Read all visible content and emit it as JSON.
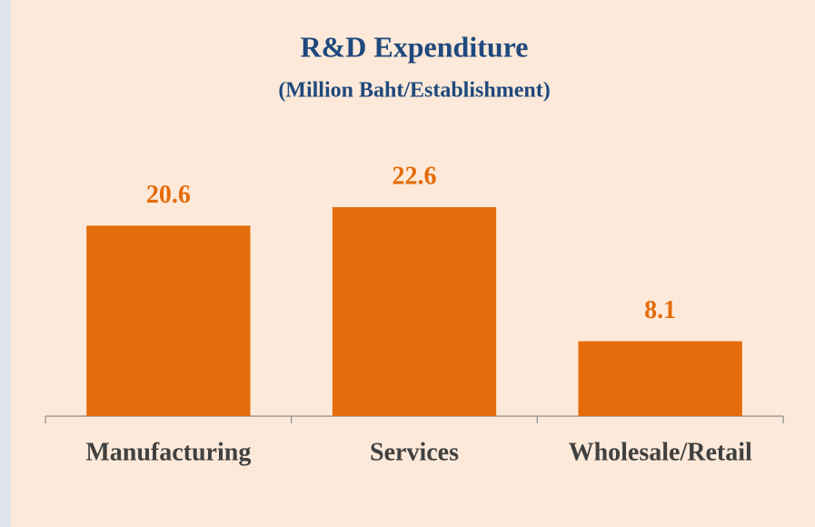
{
  "chart_data": {
    "type": "bar",
    "title": "R&D Expenditure",
    "subtitle": "(Million Baht/Establishment)",
    "categories": [
      "Manufacturing",
      "Services",
      "Wholesale/Retail"
    ],
    "values": [
      20.6,
      22.6,
      8.1
    ],
    "color": "#e46c0a"
  }
}
